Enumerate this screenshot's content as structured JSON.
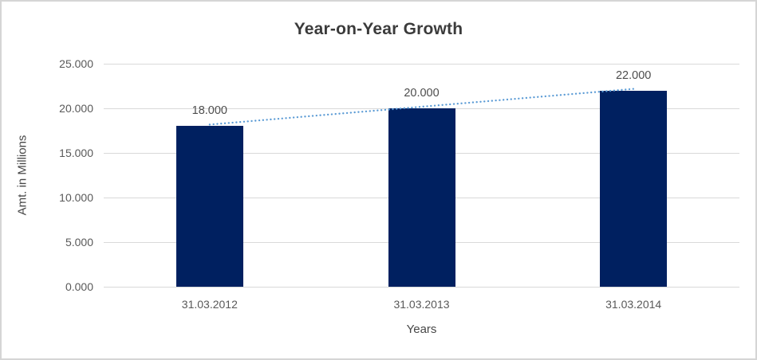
{
  "window": {
    "background_color": "#ffffff",
    "border_color": "#d5d5d5"
  },
  "chart_data": {
    "type": "bar",
    "title": "Year-on-Year Growth",
    "xlabel": "Years",
    "ylabel": "Amt. in Millions",
    "categories": [
      "31.03.2012",
      "31.03.2013",
      "31.03.2014"
    ],
    "values": [
      18,
      20,
      22
    ],
    "data_labels": [
      "18.000",
      "20.000",
      "22.000"
    ],
    "ylim": [
      0,
      25
    ],
    "ytick_values": [
      0,
      5,
      10,
      15,
      20,
      25
    ],
    "ytick_labels": [
      "0.000",
      "5.000",
      "10.000",
      "15.000",
      "20.000",
      "25.000"
    ],
    "grid": true,
    "gridline_color": "#d9d9d9",
    "bar_color": "#002060",
    "legend": "none",
    "trendline": {
      "type": "linear",
      "style": "dotted",
      "color": "#5b9bd5",
      "from_value": 18,
      "to_value": 22
    },
    "title_color": "#3b3b3b",
    "label_color": "#595959"
  }
}
